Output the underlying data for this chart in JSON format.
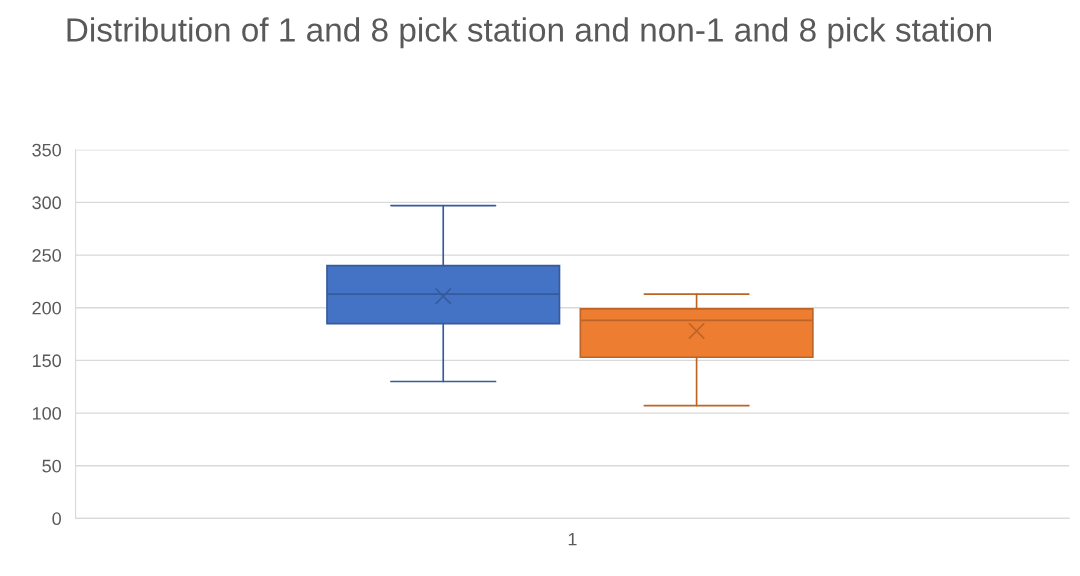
{
  "chart_data": {
    "type": "box",
    "title": "Distribution of 1 and 8 pick station and non-1 and 8 pick station",
    "categories": [
      "1"
    ],
    "series": [
      {
        "color": "#4472c4",
        "boxes": [
          {
            "low": 130,
            "q1": 185,
            "median": 213,
            "q3": 240,
            "high": 297,
            "mean": 211
          }
        ]
      },
      {
        "color": "#ed7d31",
        "boxes": [
          {
            "low": 107,
            "q1": 153,
            "median": 188,
            "q3": 199,
            "high": 213,
            "mean": 178
          }
        ]
      }
    ],
    "ylim": [
      0,
      350
    ],
    "yticks": [
      0,
      50,
      100,
      150,
      200,
      250,
      300,
      350
    ],
    "grid": "y"
  }
}
